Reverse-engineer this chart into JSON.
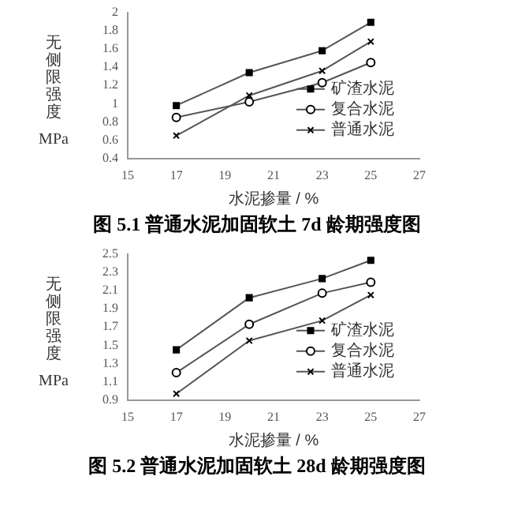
{
  "chart_data": [
    {
      "type": "line",
      "title": "图 5.1  普通水泥加固软土 7d 龄期强度图",
      "xlabel": "水泥掺量 / %",
      "ylabel": "无侧限强度 MPa",
      "x": [
        17,
        20,
        23,
        25
      ],
      "xlim": [
        15,
        27
      ],
      "xticks": [
        15,
        17,
        19,
        21,
        23,
        25,
        27
      ],
      "ylim": [
        0.4,
        2.0
      ],
      "yticks": [
        0.4,
        0.6,
        0.8,
        1.0,
        1.2,
        1.4,
        1.6,
        1.8,
        2.0
      ],
      "grid": false,
      "legend": "bottom right",
      "series": [
        {
          "name": "矿渣水泥",
          "color": "#555555",
          "marker": "square",
          "values": [
            0.98,
            1.34,
            1.58,
            1.89
          ]
        },
        {
          "name": "复合水泥",
          "color": "#555555",
          "marker": "circle",
          "values": [
            0.85,
            1.02,
            1.23,
            1.45
          ]
        },
        {
          "name": "普通水泥",
          "color": "#555555",
          "marker": "cross",
          "values": [
            0.65,
            1.09,
            1.36,
            1.68
          ]
        }
      ]
    },
    {
      "type": "line",
      "title": "图 5.2  普通水泥加固软土 28d 龄期强度图",
      "xlabel": "水泥掺量 / %",
      "ylabel": "无侧限强度 MPa",
      "x": [
        17,
        20,
        23,
        25
      ],
      "xlim": [
        15,
        27
      ],
      "xticks": [
        15,
        17,
        19,
        21,
        23,
        25,
        27
      ],
      "ylim": [
        0.9,
        2.5
      ],
      "yticks": [
        0.9,
        1.1,
        1.3,
        1.5,
        1.7,
        1.9,
        2.1,
        2.3,
        2.5
      ],
      "grid": false,
      "legend": "bottom right",
      "series": [
        {
          "name": "矿渣水泥",
          "color": "#555555",
          "marker": "square",
          "values": [
            1.45,
            2.02,
            2.23,
            2.43
          ]
        },
        {
          "name": "复合水泥",
          "color": "#555555",
          "marker": "circle",
          "values": [
            1.2,
            1.73,
            2.07,
            2.19
          ]
        },
        {
          "name": "普通水泥",
          "color": "#555555",
          "marker": "cross",
          "values": [
            0.97,
            1.55,
            1.77,
            2.05
          ]
        }
      ]
    }
  ]
}
